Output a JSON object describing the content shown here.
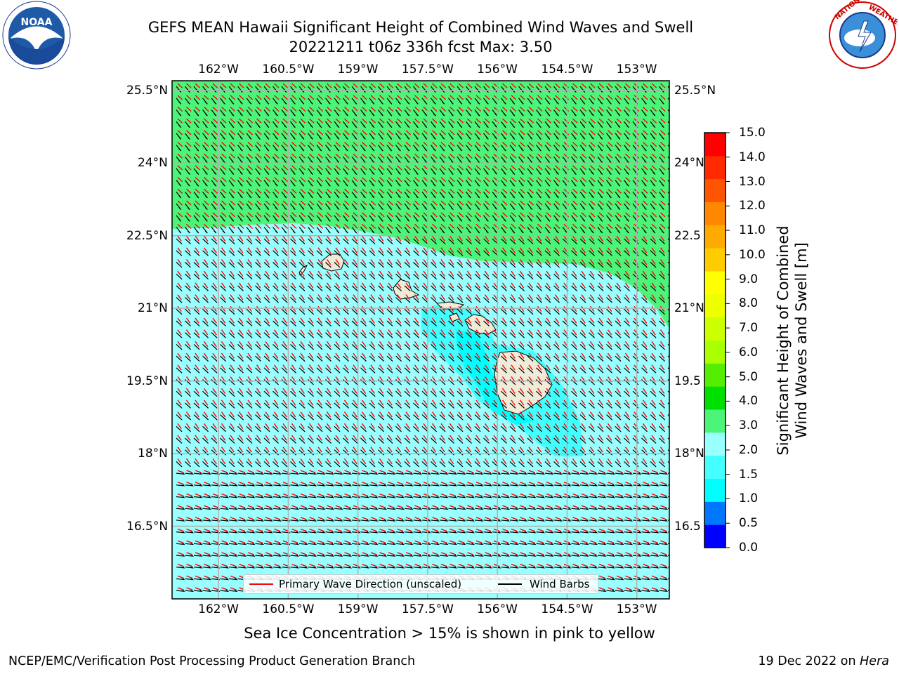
{
  "title_line1": "GEFS MEAN Hawaii Significant Height of Combined Wind Waves and Swell",
  "title_line2": "20221211 t06z 336h fcst   Max: 3.50",
  "lon_ticks": [
    {
      "label": "162°W",
      "lon": -162.0
    },
    {
      "label": "160.5°W",
      "lon": -160.5
    },
    {
      "label": "159°W",
      "lon": -159.0
    },
    {
      "label": "157.5°W",
      "lon": -157.5
    },
    {
      "label": "156°W",
      "lon": -156.0
    },
    {
      "label": "154.5°W",
      "lon": -154.5
    },
    {
      "label": "153°W",
      "lon": -153.0
    }
  ],
  "lat_ticks": [
    {
      "label": "25.5°N",
      "lat": 25.5
    },
    {
      "label": "24°N",
      "lat": 24.0
    },
    {
      "label": "22.5°N",
      "lat": 22.5
    },
    {
      "label": "21°N",
      "lat": 21.0
    },
    {
      "label": "19.5°N",
      "lat": 19.5
    },
    {
      "label": "18°N",
      "lat": 18.0
    },
    {
      "label": "16.5°N",
      "lat": 16.5
    }
  ],
  "lat_ticks_right": [
    {
      "label": "25.5°N",
      "lat": 25.5
    },
    {
      "label": "24°N",
      "lat": 24.0
    },
    {
      "label": "22.5",
      "lat": 22.5
    },
    {
      "label": "21°N",
      "lat": 21.0
    },
    {
      "label": "19.5",
      "lat": 19.5
    },
    {
      "label": "18°N",
      "lat": 18.0
    },
    {
      "label": "16.5",
      "lat": 16.5
    }
  ],
  "map_extent": {
    "lon_min": -163.0,
    "lon_max": -152.3,
    "lat_min": 15.0,
    "lat_max": 25.7
  },
  "colorbar": {
    "label_line1": "Significant Height of Combined",
    "label_line2": "Wind Waves and Swell [m]",
    "levels": [
      "0.0",
      "0.5",
      "1.0",
      "1.5",
      "2.0",
      "3.0",
      "4.0",
      "5.0",
      "6.0",
      "7.0",
      "8.0",
      "9.0",
      "10.0",
      "11.0",
      "12.0",
      "13.0",
      "14.0",
      "15.0"
    ],
    "colors": [
      "#0000ff",
      "#0077ff",
      "#00ffff",
      "#44ffff",
      "#99ffff",
      "#4cf57a",
      "#00e000",
      "#55ee00",
      "#aaff00",
      "#ccff00",
      "#eeff00",
      "#ffff00",
      "#ffcc00",
      "#ffaa00",
      "#ff8800",
      "#ff5500",
      "#ff2a00",
      "#ff0000"
    ]
  },
  "legend": {
    "wave_label": "Primary Wave Direction (unscaled)",
    "barb_label": "Wind Barbs",
    "wave_color": "#ff0000",
    "barb_color": "#000000"
  },
  "footer_note": "Sea Ice Concentration > 15% is shown in pink to yellow",
  "footer_left": "NCEP/EMC/Verification Post Processing Product Generation Branch",
  "footer_right_prefix": "19 Dec 2022 on ",
  "footer_right_machine": "Hera",
  "logos": {
    "left": "noaa-logo",
    "right": "nws-logo"
  }
}
